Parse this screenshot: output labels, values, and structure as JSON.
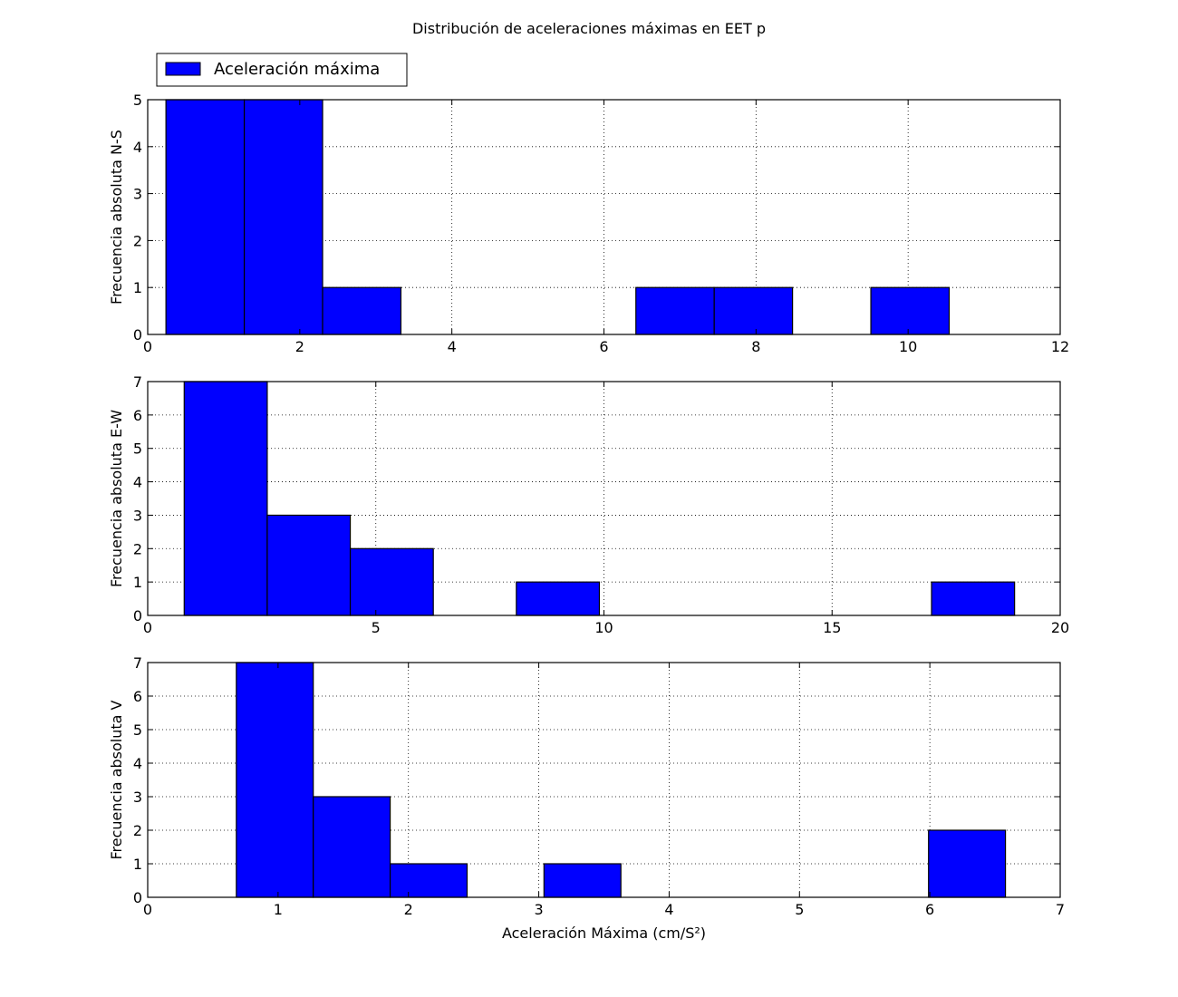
{
  "figure": {
    "title": "Distribución de aceleraciones máximas en EET p",
    "legend": {
      "label": "Aceleración máxima",
      "placement": "top-left-outside",
      "color": "#0000ff"
    },
    "bar_color": "#0000ff",
    "edge_color": "#000000"
  },
  "chart_data": [
    {
      "type": "bar",
      "subtype": "histogram",
      "title": "",
      "xlabel": "",
      "ylabel": "Frecuencia absoluta N-S",
      "xlim": [
        0,
        12
      ],
      "ylim": [
        0,
        5
      ],
      "xticks": [
        0,
        2,
        4,
        6,
        8,
        10,
        12
      ],
      "yticks": [
        0,
        1,
        2,
        3,
        4,
        5
      ],
      "grid": true,
      "bins": [
        {
          "x0": 0.24,
          "x1": 1.27,
          "count": 5
        },
        {
          "x0": 1.27,
          "x1": 2.3,
          "count": 5
        },
        {
          "x0": 2.3,
          "x1": 3.33,
          "count": 1
        },
        {
          "x0": 3.33,
          "x1": 4.36,
          "count": 0
        },
        {
          "x0": 4.36,
          "x1": 5.39,
          "count": 0
        },
        {
          "x0": 5.39,
          "x1": 6.42,
          "count": 0
        },
        {
          "x0": 6.42,
          "x1": 7.45,
          "count": 1
        },
        {
          "x0": 7.45,
          "x1": 8.48,
          "count": 1
        },
        {
          "x0": 8.48,
          "x1": 9.51,
          "count": 0
        },
        {
          "x0": 9.51,
          "x1": 10.54,
          "count": 1
        }
      ]
    },
    {
      "type": "bar",
      "subtype": "histogram",
      "title": "",
      "xlabel": "",
      "ylabel": "Frecuencia absoluta E-W",
      "xlim": [
        0,
        20
      ],
      "ylim": [
        0,
        7
      ],
      "xticks": [
        0,
        5,
        10,
        15,
        20
      ],
      "yticks": [
        0,
        1,
        2,
        3,
        4,
        5,
        6,
        7
      ],
      "grid": true,
      "bins": [
        {
          "x0": 0.8,
          "x1": 2.62,
          "count": 7
        },
        {
          "x0": 2.62,
          "x1": 4.44,
          "count": 3
        },
        {
          "x0": 4.44,
          "x1": 6.26,
          "count": 2
        },
        {
          "x0": 6.26,
          "x1": 8.08,
          "count": 0
        },
        {
          "x0": 8.08,
          "x1": 9.9,
          "count": 1
        },
        {
          "x0": 9.9,
          "x1": 11.72,
          "count": 0
        },
        {
          "x0": 11.72,
          "x1": 13.54,
          "count": 0
        },
        {
          "x0": 13.54,
          "x1": 15.36,
          "count": 0
        },
        {
          "x0": 15.36,
          "x1": 17.18,
          "count": 0
        },
        {
          "x0": 17.18,
          "x1": 19.0,
          "count": 1
        }
      ]
    },
    {
      "type": "bar",
      "subtype": "histogram",
      "title": "",
      "xlabel": "Aceleración Máxima (cm/S²)",
      "ylabel": "Frecuencia absoluta V",
      "xlim": [
        0,
        7
      ],
      "ylim": [
        0,
        7
      ],
      "xticks": [
        0,
        1,
        2,
        3,
        4,
        5,
        6,
        7
      ],
      "yticks": [
        0,
        1,
        2,
        3,
        4,
        5,
        6,
        7
      ],
      "grid": true,
      "bins": [
        {
          "x0": 0.68,
          "x1": 1.27,
          "count": 7
        },
        {
          "x0": 1.27,
          "x1": 1.86,
          "count": 3
        },
        {
          "x0": 1.86,
          "x1": 2.45,
          "count": 1
        },
        {
          "x0": 2.45,
          "x1": 3.04,
          "count": 0
        },
        {
          "x0": 3.04,
          "x1": 3.63,
          "count": 1
        },
        {
          "x0": 3.63,
          "x1": 4.22,
          "count": 0
        },
        {
          "x0": 4.22,
          "x1": 4.81,
          "count": 0
        },
        {
          "x0": 4.81,
          "x1": 5.4,
          "count": 0
        },
        {
          "x0": 5.4,
          "x1": 5.99,
          "count": 0
        },
        {
          "x0": 5.99,
          "x1": 6.58,
          "count": 2
        }
      ]
    }
  ]
}
